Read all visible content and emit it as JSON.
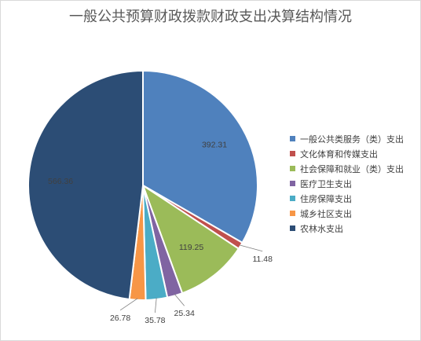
{
  "chart_data": {
    "type": "pie",
    "title": "一般公共预算财政拨款财政支出决算结构情况",
    "categories": [
      "一般公共类服务（类）支出",
      "文化体育和传媒支出",
      "社会保障和就业（类）支出",
      "医疗卫生支出",
      "住房保障支出",
      "城乡社区支出",
      "农林水支出"
    ],
    "values": [
      392.31,
      11.48,
      119.25,
      25.34,
      35.78,
      26.78,
      566.36
    ],
    "data_labels": [
      "392.31",
      "11.48",
      "119.25",
      "25.34",
      "35.78",
      "26.78",
      "566.36"
    ],
    "colors": [
      "#4f81bd",
      "#c0504d",
      "#9bbb59",
      "#8064a2",
      "#4bacc6",
      "#f79646",
      "#2c4d75"
    ],
    "legend_position": "right",
    "start_angle": "top",
    "direction": "clockwise"
  }
}
